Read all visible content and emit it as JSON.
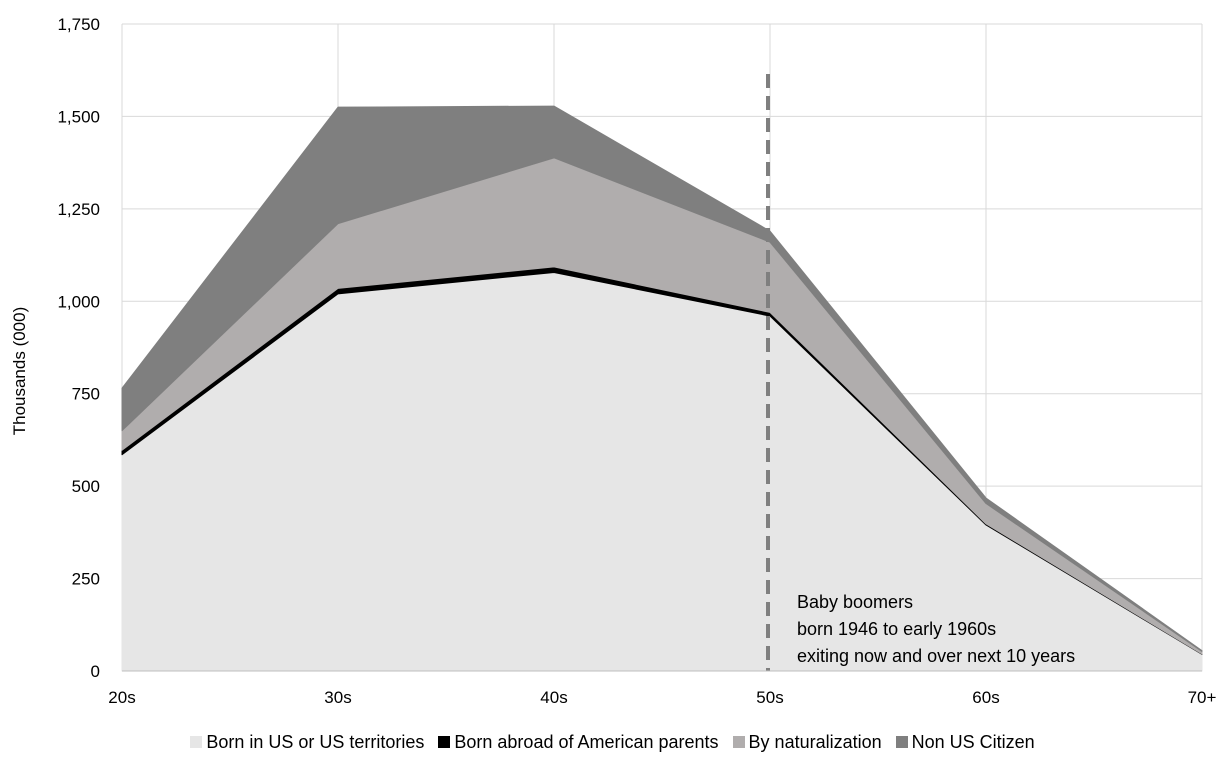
{
  "chart_data": {
    "type": "area",
    "stacked": true,
    "categories": [
      "20s",
      "30s",
      "40s",
      "50s",
      "60s",
      "70+"
    ],
    "ylabel": "Thousands (000)",
    "ylim": [
      0,
      1750
    ],
    "yticks": [
      0,
      250,
      500,
      750,
      1000,
      1250,
      1500,
      1750
    ],
    "ytick_labels": [
      "0",
      "250",
      "500",
      "750",
      "1,000",
      "1,250",
      "1,500",
      "1,750"
    ],
    "grid": true,
    "legend_position": "bottom",
    "series": [
      {
        "name": "Born in US or US territories",
        "color": "#e6e6e6",
        "values": [
          585,
          1020,
          1078,
          960,
          395,
          45
        ]
      },
      {
        "name": "Born abroad of American parents",
        "color": "#000000",
        "values": [
          12,
          15,
          15,
          10,
          3,
          1
        ]
      },
      {
        "name": "By naturalization",
        "color": "#b0adad",
        "values": [
          53,
          175,
          295,
          190,
          55,
          7
        ]
      },
      {
        "name": "Non US Citizen",
        "color": "#7f7f7f",
        "values": [
          115,
          315,
          140,
          30,
          15,
          2
        ]
      }
    ],
    "reference_line": {
      "category": "50s",
      "color": "#7f7f7f",
      "style": "dashed"
    },
    "annotation": [
      "Baby boomers",
      "born 1946 to early 1960s",
      "exiting now and over next 10 years"
    ]
  }
}
